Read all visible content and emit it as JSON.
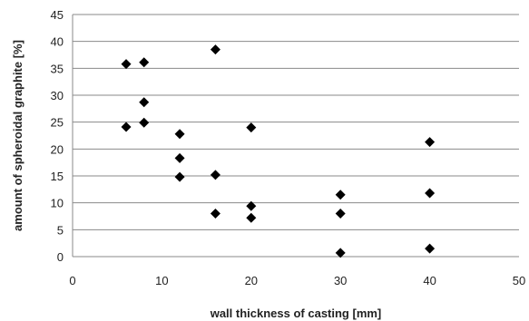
{
  "chart_data": {
    "type": "scatter",
    "title": "",
    "xlabel": "wall thickness of casting [mm]",
    "ylabel": "amount of spheroidal graphite [%]",
    "xlim": [
      0,
      50
    ],
    "ylim": [
      0,
      45
    ],
    "xticks": [
      0,
      10,
      20,
      30,
      40,
      50
    ],
    "yticks": [
      0,
      5,
      10,
      15,
      20,
      25,
      30,
      35,
      40,
      45
    ],
    "grid": "horizontal",
    "marker": "diamond",
    "marker_color": "#000000",
    "points": [
      {
        "x": 6,
        "y": 35.8
      },
      {
        "x": 6,
        "y": 24.1
      },
      {
        "x": 8,
        "y": 36.1
      },
      {
        "x": 8,
        "y": 28.7
      },
      {
        "x": 8,
        "y": 24.9
      },
      {
        "x": 12,
        "y": 22.8
      },
      {
        "x": 12,
        "y": 18.3
      },
      {
        "x": 12,
        "y": 14.8
      },
      {
        "x": 16,
        "y": 38.5
      },
      {
        "x": 16,
        "y": 15.2
      },
      {
        "x": 16,
        "y": 8.0
      },
      {
        "x": 20,
        "y": 24.0
      },
      {
        "x": 20,
        "y": 9.4
      },
      {
        "x": 20,
        "y": 7.2
      },
      {
        "x": 30,
        "y": 11.5
      },
      {
        "x": 30,
        "y": 8.0
      },
      {
        "x": 30,
        "y": 0.7
      },
      {
        "x": 40,
        "y": 21.3
      },
      {
        "x": 40,
        "y": 11.8
      },
      {
        "x": 40,
        "y": 1.5
      }
    ]
  }
}
